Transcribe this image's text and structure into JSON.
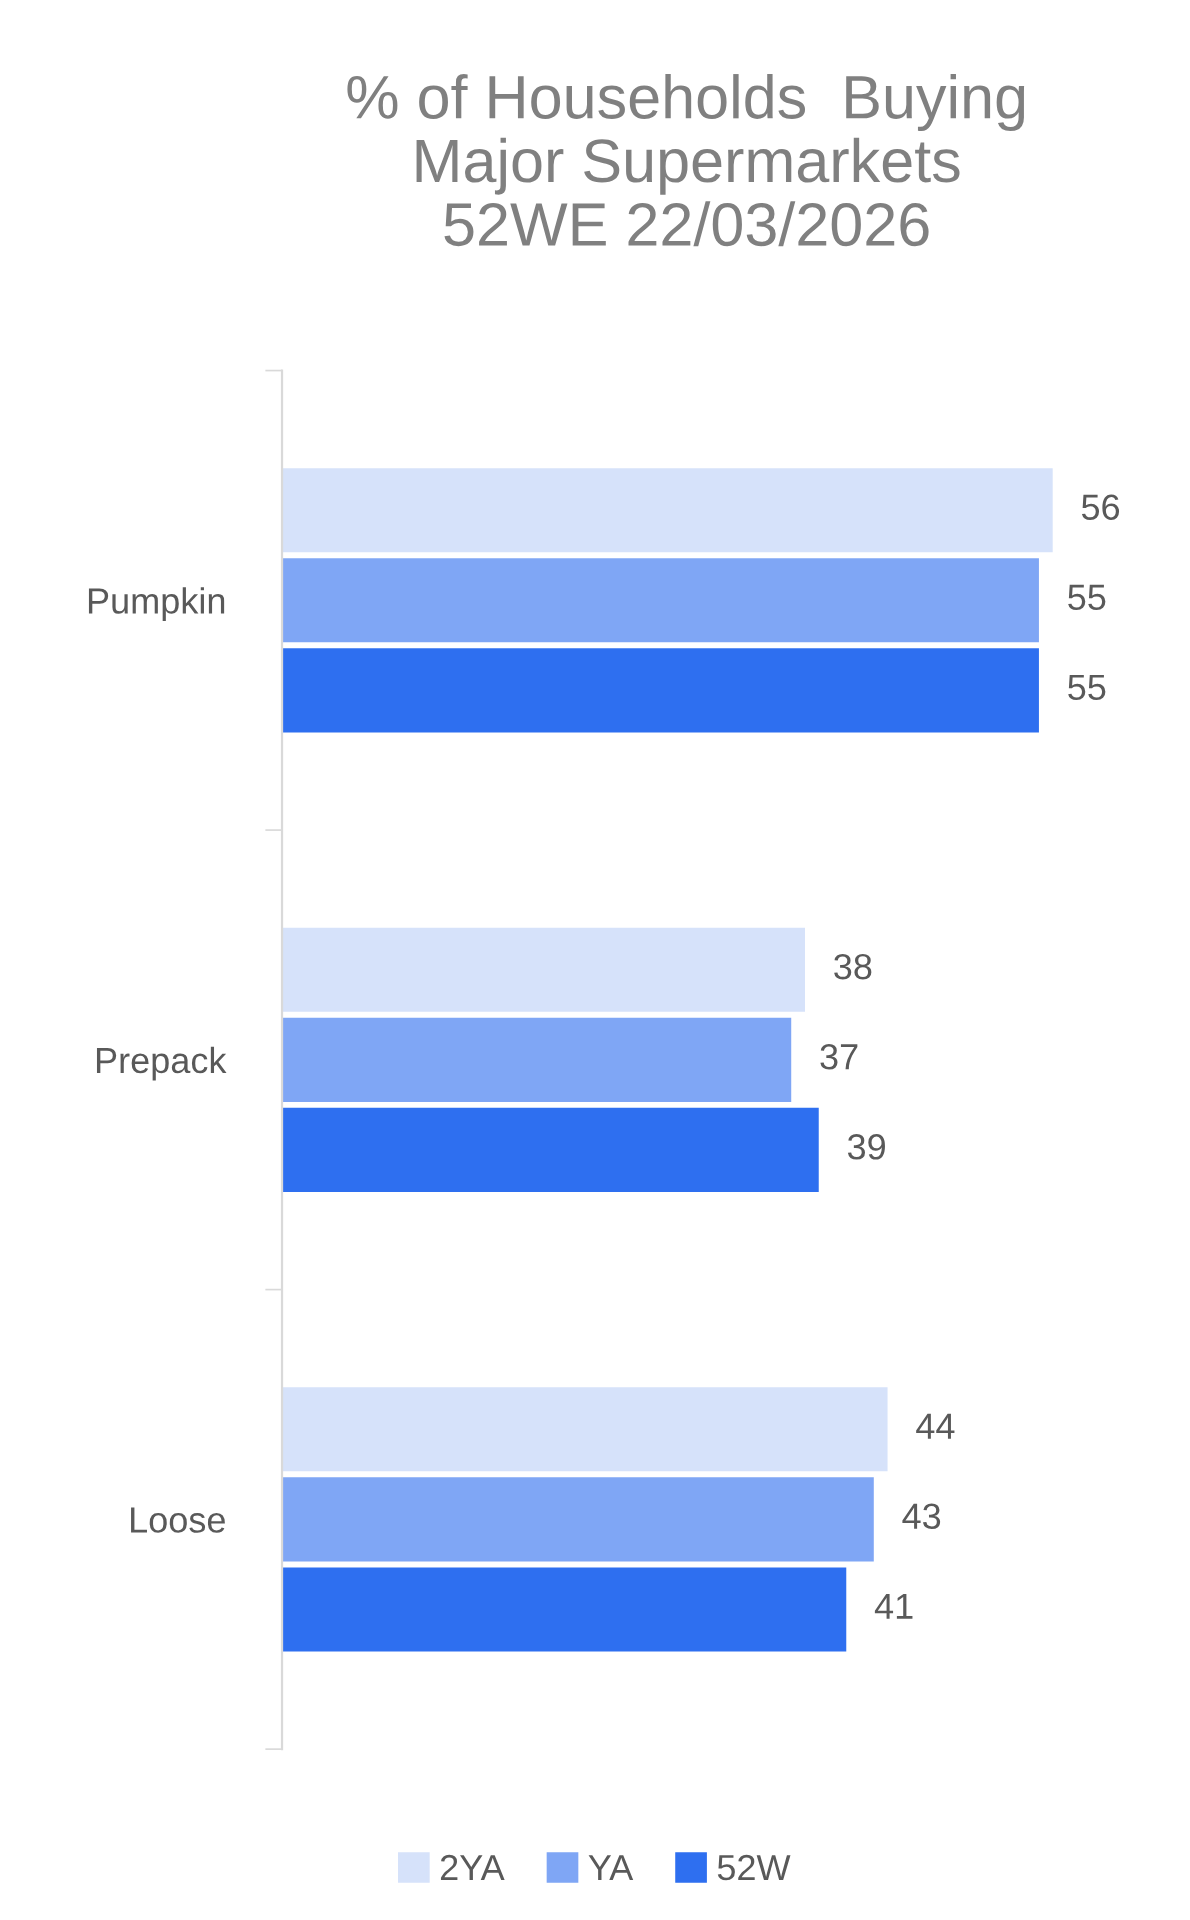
{
  "chart_data": {
    "type": "bar",
    "orientation": "horizontal",
    "title": "% of Households  Buying\nMajor Supermarkets\n52WE 22/03/2026",
    "categories": [
      "Pumpkin",
      "Prepack",
      "Loose"
    ],
    "series": [
      {
        "name": "2YA",
        "color": "#d6e2fa",
        "values": [
          56,
          38,
          44
        ]
      },
      {
        "name": "YA",
        "color": "#7fa6f5",
        "values": [
          55,
          37,
          43
        ]
      },
      {
        "name": "52W",
        "color": "#2e6ff0",
        "values": [
          55,
          39,
          41
        ]
      }
    ],
    "data_labels": true,
    "legend": "bottom",
    "grid": false
  }
}
